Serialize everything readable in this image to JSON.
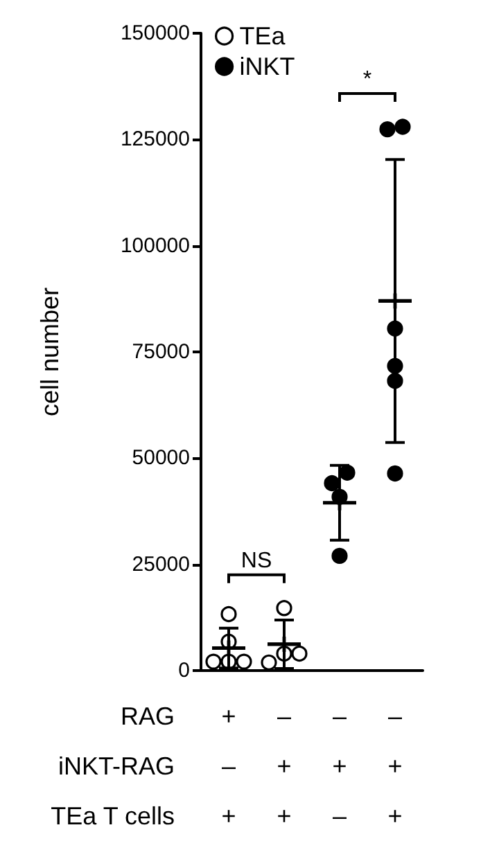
{
  "chart_data": {
    "type": "scatter",
    "ylabel": "cell number",
    "categories": [
      null,
      null,
      null,
      null
    ],
    "ylim": [
      0,
      150000
    ],
    "yticks": [
      0,
      25000,
      50000,
      75000,
      100000,
      125000,
      150000
    ],
    "grid": false,
    "legend": "top left",
    "marker": "circle",
    "series": [
      {
        "name": "TEa",
        "color": "#ffffff",
        "values": [
          13300,
          14700,
          null,
          null
        ]
      },
      {
        "color": "#ffffff",
        "values": [
          6800,
          4000,
          null,
          null
        ]
      },
      {
        "color": "#ffffff",
        "values": [
          2100,
          1900,
          null,
          null
        ]
      },
      {
        "color": "#ffffff",
        "values": [
          2100,
          4000,
          null,
          null
        ]
      },
      {
        "color": "#ffffff",
        "values": [
          2100,
          null,
          null,
          null
        ]
      },
      {
        "name": "iNKT",
        "color": "#000000",
        "values": [
          null,
          null,
          44100,
          128000
        ]
      },
      {
        "color": "#000000",
        "values": [
          null,
          null,
          46600,
          127400
        ]
      },
      {
        "color": "#000000",
        "values": [
          null,
          null,
          40900,
          80500
        ]
      },
      {
        "color": "#000000",
        "values": [
          null,
          null,
          27000,
          71700
        ]
      },
      {
        "color": "#000000",
        "values": [
          null,
          null,
          null,
          68200
        ]
      },
      {
        "color": "#000000",
        "values": [
          null,
          null,
          null,
          46400
        ]
      },
      {
        "color": "#000000",
        "marker": "cross",
        "values": [
          5300,
          6200,
          39500,
          87000
        ],
        "errors": [
          4700,
          5700,
          8800,
          33300
        ]
      }
    ],
    "annotations": [
      "RAG",
      "+",
      "–",
      "–",
      "–",
      "iNKT-RAG",
      "–",
      "+",
      "+",
      "+",
      "TEa T cells",
      "+",
      "+",
      "–",
      "+",
      "NS",
      "*"
    ]
  }
}
